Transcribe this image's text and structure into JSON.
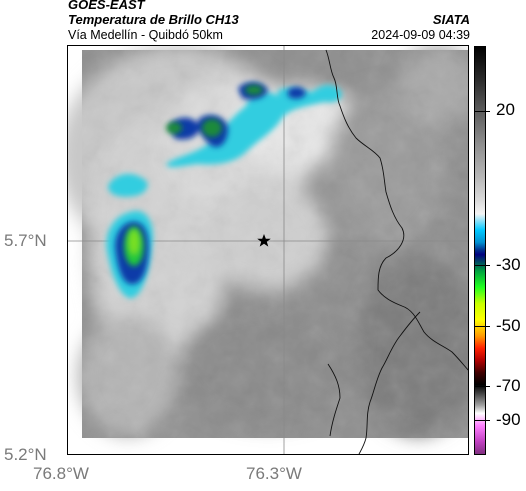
{
  "header": {
    "satellite": "GOES-EAST",
    "product": "Temperatura de Brillo CH13",
    "location": "Vía Medellín - Quibdó 50km",
    "agency": "SIATA",
    "datetime": "2024-09-09 04:39"
  },
  "axes": {
    "y_ticks": [
      "5.7°N",
      "5.2°N"
    ],
    "x_ticks": [
      "76.8°W",
      "76.3°W"
    ]
  },
  "colorbar": {
    "labels": [
      "20",
      "-30",
      "-50",
      "-70",
      "-90"
    ]
  },
  "map": {
    "marker": "star-icon"
  },
  "colors": {
    "cloud_cyan": "#33cde0",
    "cloud_blue": "#0a3aa8",
    "cloud_green": "#22c83a",
    "border": "#000000"
  }
}
